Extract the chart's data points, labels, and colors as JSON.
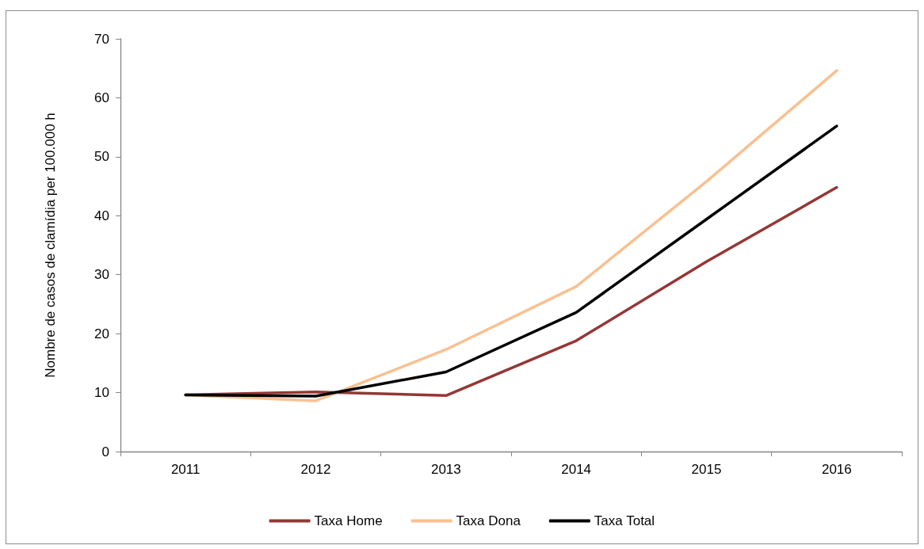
{
  "chart_data": {
    "type": "line",
    "ylabel": "Nombre de casos de clamídia per 100.000 h",
    "categories": [
      "2011",
      "2012",
      "2013",
      "2014",
      "2015",
      "2016"
    ],
    "series": [
      {
        "name": "Taxa Home",
        "color": "#953735",
        "values": [
          9.6,
          10.1,
          9.5,
          18.8,
          32.2,
          44.8
        ]
      },
      {
        "name": "Taxa Dona",
        "color": "#fac090",
        "values": [
          9.6,
          8.6,
          17.3,
          28.0,
          45.8,
          64.6
        ]
      },
      {
        "name": "Taxa Total",
        "color": "#000000",
        "values": [
          9.6,
          9.4,
          13.5,
          23.6,
          39.4,
          55.2
        ]
      }
    ],
    "ylim": [
      0,
      70
    ],
    "yticks": [
      0,
      10,
      20,
      30,
      40,
      50,
      60,
      70
    ],
    "grid": false,
    "legend": "bottom",
    "marker": "none",
    "line_style": "solid"
  }
}
